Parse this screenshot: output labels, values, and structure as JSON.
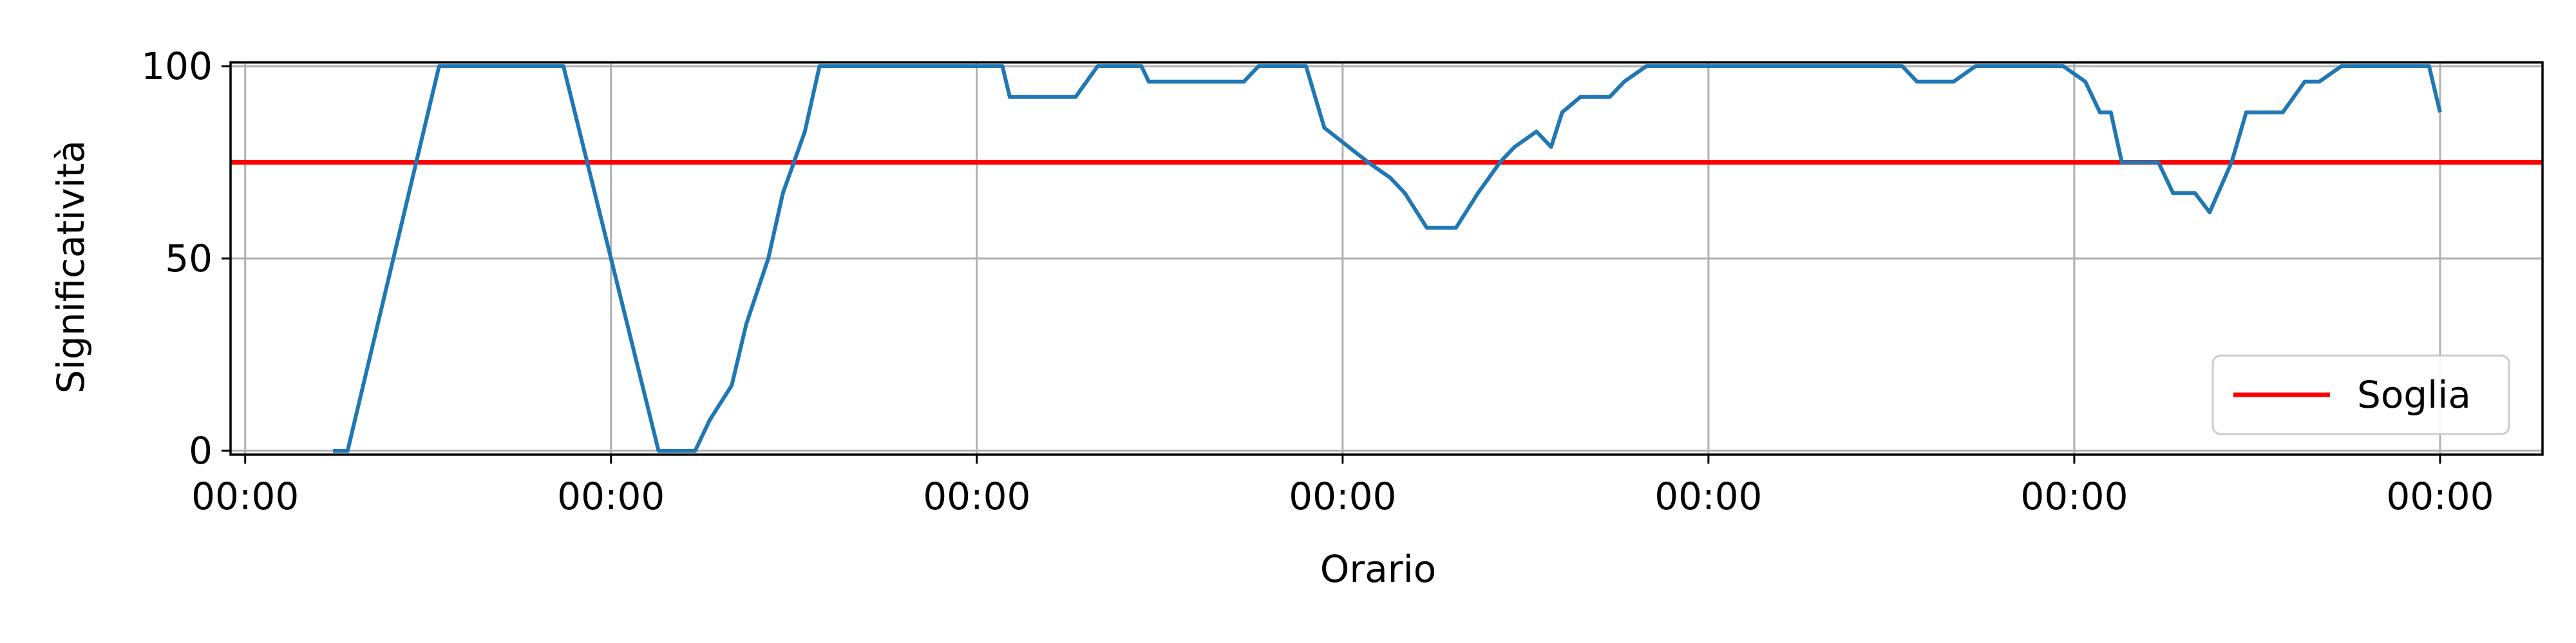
{
  "chart_data": {
    "type": "line",
    "xlabel": "Orario",
    "ylabel": "Significatività",
    "x_tick_labels": [
      "00:00",
      "00:00",
      "00:00",
      "00:00",
      "00:00",
      "00:00",
      "00:00"
    ],
    "y_ticks": [
      0,
      50,
      100
    ],
    "xlim": [
      -0.04,
      6.28
    ],
    "ylim": [
      -1,
      101
    ],
    "grid": true,
    "legend": {
      "position": "lower-right",
      "entries": [
        "Soglia"
      ]
    },
    "colors": {
      "series": "#1f77b4",
      "threshold": "#ff0000",
      "grid": "#b0b0b0",
      "axes": "#000000"
    },
    "threshold": {
      "name": "Soglia",
      "value": 75
    },
    "series": [
      {
        "x": [
          0.24,
          0.28,
          0.53,
          0.87,
          1.13,
          1.23,
          1.27,
          1.33,
          1.37,
          1.43,
          1.47,
          1.53,
          1.57,
          1.63,
          1.67,
          1.73,
          1.77,
          1.83,
          1.87,
          1.93,
          1.97,
          2.03,
          2.07,
          2.09,
          2.17,
          2.23,
          2.27,
          2.33,
          2.35,
          2.37,
          2.45,
          2.47,
          2.53,
          2.57,
          2.63,
          2.67,
          2.73,
          2.77,
          2.83,
          2.87,
          2.9,
          2.95,
          3.07,
          3.13,
          3.17,
          3.23,
          3.27,
          3.31,
          3.37,
          3.4,
          3.43,
          3.47,
          3.53,
          3.57,
          3.6,
          3.65,
          3.73,
          3.77,
          3.83,
          3.87,
          3.93,
          3.97,
          4.03,
          4.07,
          4.13,
          4.15,
          4.17,
          4.23,
          4.27,
          4.33,
          4.37,
          4.43,
          4.47,
          4.53,
          4.57,
          4.63,
          4.67,
          4.73,
          4.77,
          4.83,
          4.87,
          4.93,
          4.97,
          5.03,
          5.07,
          5.1,
          5.13,
          5.17,
          5.23,
          5.27,
          5.33,
          5.37,
          5.43,
          5.47,
          5.53,
          5.57,
          5.63,
          5.67,
          5.73,
          5.77,
          5.83,
          5.87,
          5.93,
          5.97,
          6.0
        ],
        "y": [
          0,
          0,
          100,
          100,
          0,
          0,
          8,
          17,
          33,
          50,
          67,
          83,
          100,
          100,
          100,
          100,
          100,
          100,
          100,
          100,
          100,
          100,
          100,
          92,
          92,
          92,
          92,
          100,
          100,
          100,
          100,
          96,
          96,
          96,
          96,
          96,
          96,
          100,
          100,
          100,
          100,
          84,
          75,
          71,
          67,
          58,
          58,
          58,
          67,
          71,
          75,
          79,
          83,
          79,
          88,
          92,
          92,
          96,
          100,
          100,
          100,
          100,
          100,
          100,
          100,
          100,
          100,
          100,
          100,
          100,
          100,
          100,
          100,
          100,
          96,
          96,
          96,
          100,
          100,
          100,
          100,
          100,
          100,
          96,
          88,
          88,
          75,
          75,
          75,
          67,
          67,
          62,
          75,
          88,
          88,
          88,
          96,
          96,
          100,
          100,
          100,
          100,
          100,
          100,
          88
        ]
      }
    ]
  }
}
